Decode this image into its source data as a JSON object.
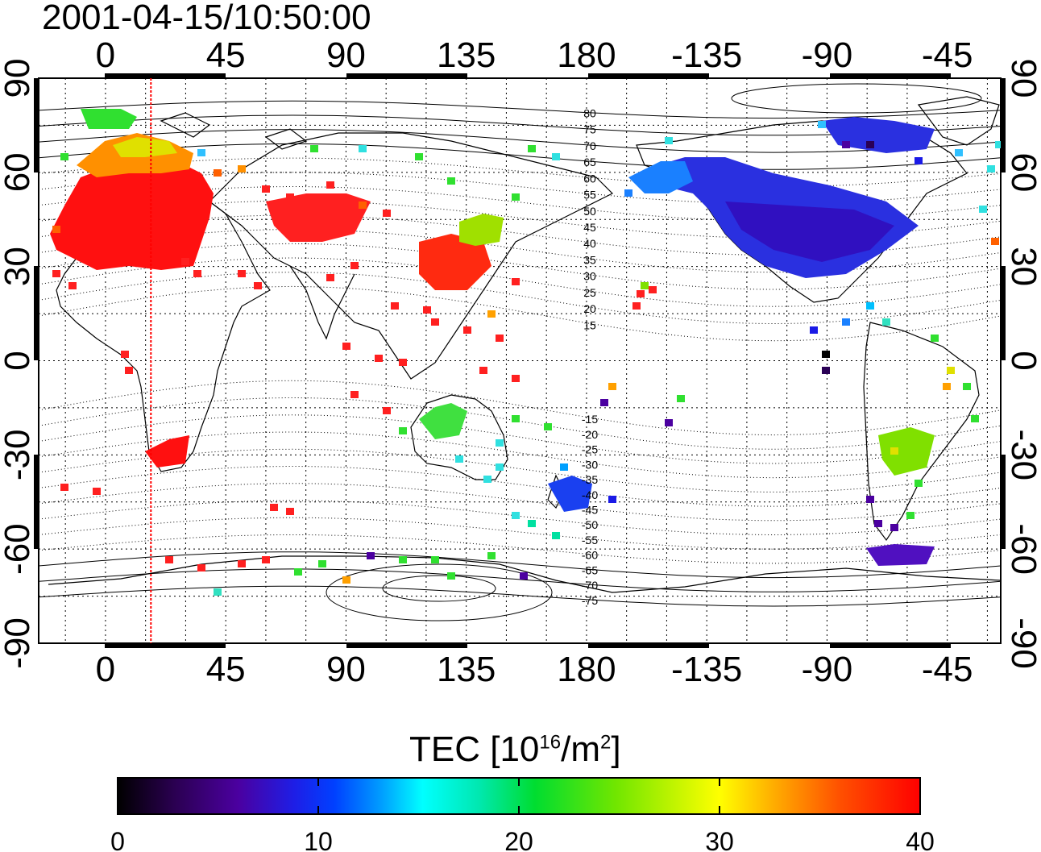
{
  "title": "2001-04-15/10:50:00",
  "map": {
    "lon_ticks_top": [
      "0",
      "45",
      "90",
      "135",
      "180",
      "-135",
      "-90",
      "-45"
    ],
    "lon_ticks_bottom": [
      "0",
      "45",
      "90",
      "135",
      "180",
      "-135",
      "-90",
      "-45"
    ],
    "lat_ticks_left": [
      "90",
      "60",
      "30",
      "0",
      "-30",
      "-60",
      "-90"
    ],
    "lat_ticks_right": [
      "90",
      "60",
      "30",
      "0",
      "-30",
      "-60",
      "-90"
    ],
    "lon_tick_values": [
      0,
      45,
      90,
      135,
      180,
      225,
      270,
      315
    ],
    "lat_tick_values": [
      90,
      60,
      30,
      0,
      -30,
      -60,
      -90
    ],
    "magnetic_lat_labels": [
      "80",
      "75",
      "70",
      "65",
      "60",
      "55",
      "50",
      "45",
      "40",
      "35",
      "30",
      "25",
      "20",
      "15",
      "-15",
      "-20",
      "-25",
      "-30",
      "-35",
      "-40",
      "-45",
      "-50",
      "-55",
      "-60",
      "-65",
      "-70",
      "-75"
    ],
    "terminator_lon": 17,
    "grid": true
  },
  "colorbar": {
    "title_prefix": "TEC  [10",
    "title_exp1": "16",
    "title_mid": "/m",
    "title_exp2": "2",
    "title_suffix": "]",
    "tick_labels": [
      "0",
      "10",
      "20",
      "30",
      "40"
    ],
    "min": 0,
    "max": 40,
    "colors": [
      "#000000",
      "#2a0055",
      "#4b00a0",
      "#1a1ae6",
      "#0050ff",
      "#00aaff",
      "#00ffff",
      "#00e6a0",
      "#00dd40",
      "#60e600",
      "#ffff00",
      "#ffa000",
      "#ff5000",
      "#ff2000",
      "#ff0000"
    ]
  }
}
